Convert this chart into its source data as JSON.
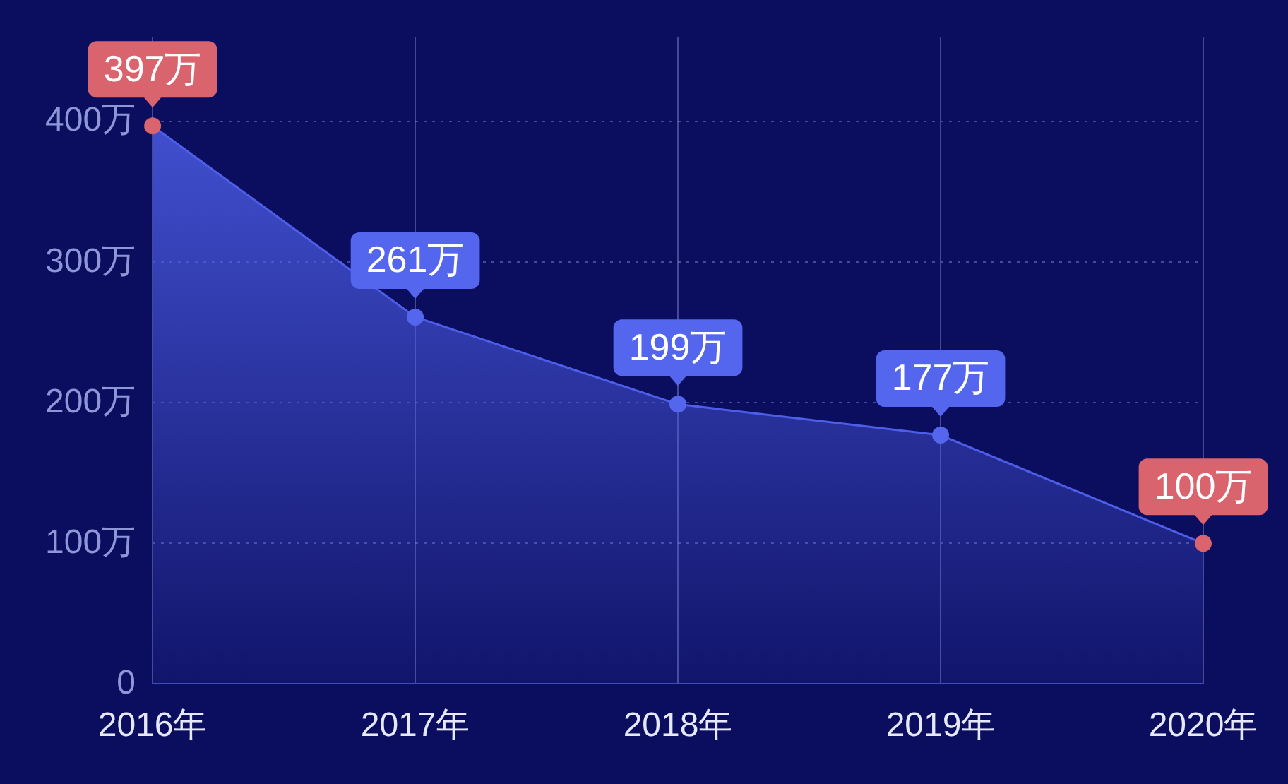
{
  "chart_data": {
    "type": "area",
    "categories": [
      "2016年",
      "2017年",
      "2018年",
      "2019年",
      "2020年"
    ],
    "series": [
      {
        "color": "#4d5ee8",
        "values": [
          397,
          261,
          199,
          177,
          100
        ],
        "colors": [
          "#d9646e",
          "#5566ee",
          "#5566ee",
          "#5566ee",
          "#d9646e"
        ],
        "value_labels": [
          "397万",
          "261万",
          "199万",
          "177万",
          "100万"
        ]
      }
    ],
    "ylim": [
      0,
      460
    ],
    "yticks": [
      {
        "value": 0,
        "label": "0"
      },
      {
        "value": 100,
        "label": "100万"
      },
      {
        "value": 200,
        "label": "200万"
      },
      {
        "value": 300,
        "label": "300万"
      },
      {
        "value": 400,
        "label": "400万"
      }
    ],
    "grid": true,
    "line_style": "solid",
    "marker": "circle",
    "legend": false
  }
}
